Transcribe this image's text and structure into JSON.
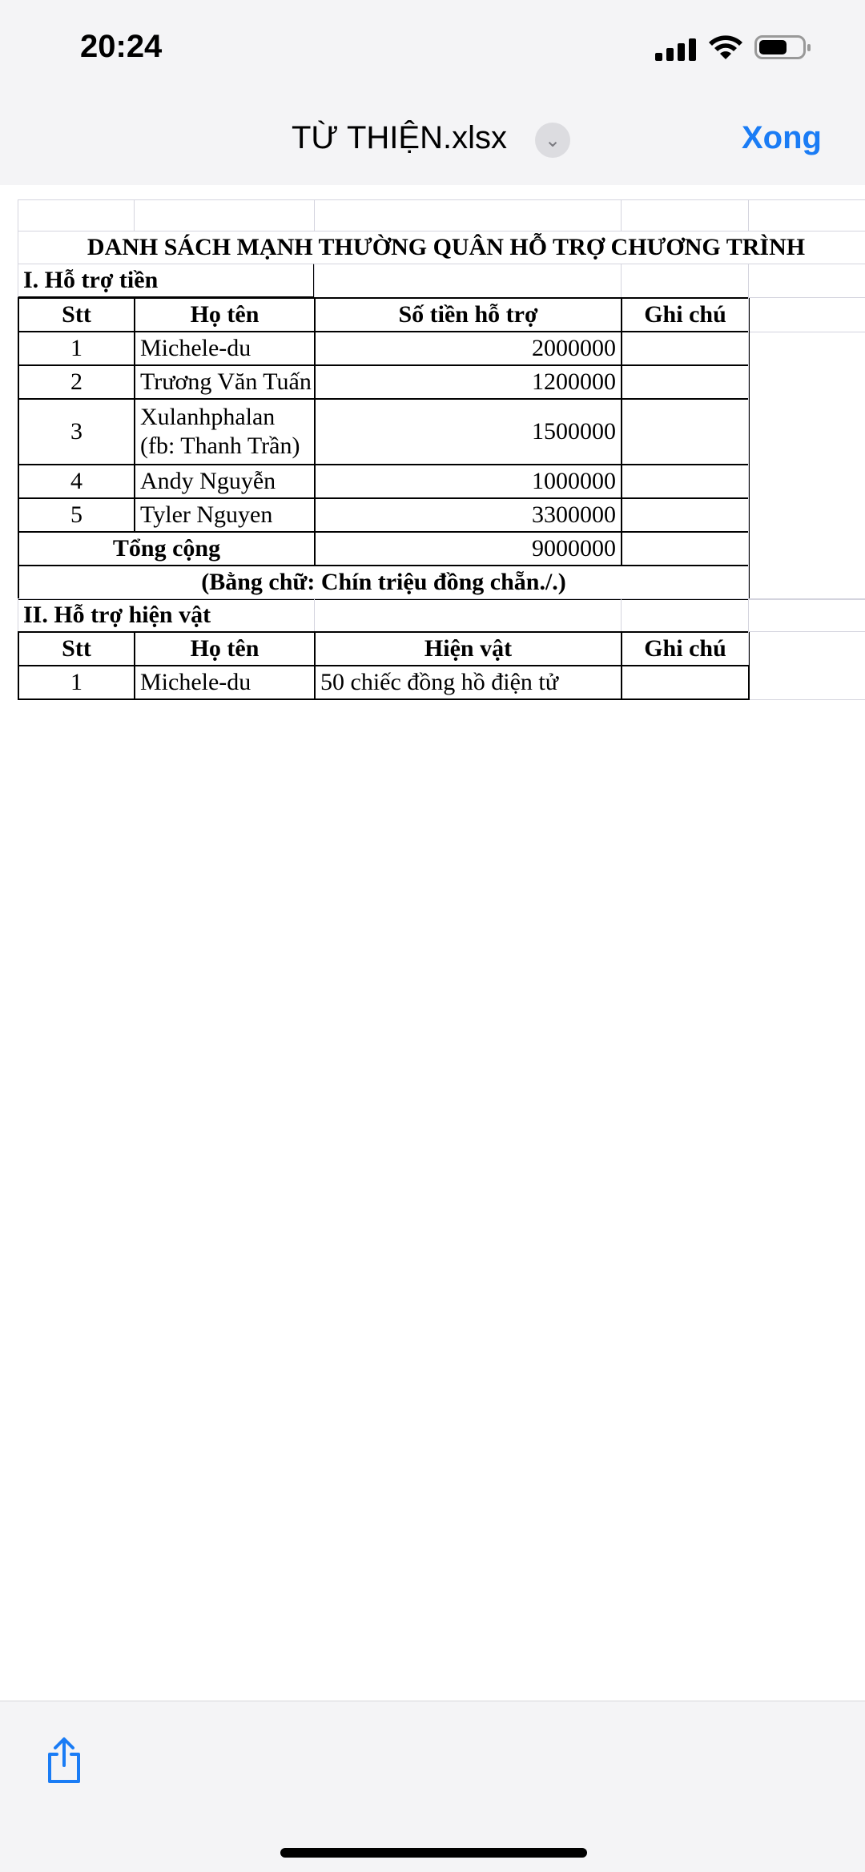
{
  "status_bar": {
    "time": "20:24"
  },
  "header": {
    "title": "TỪ THIỆN.xlsx",
    "done_label": "Xong"
  },
  "sheet": {
    "title": "DANH SÁCH MẠNH THƯỜNG QUÂN HỖ TRỢ CHƯƠNG TRÌNH",
    "section1": {
      "heading": "I. Hỗ trợ tiền",
      "columns": [
        "Stt",
        "Họ tên",
        "Số tiền hỗ trợ",
        "Ghi chú"
      ],
      "rows": [
        {
          "stt": "1",
          "name": "Michele-du",
          "amount": "2000000",
          "note": ""
        },
        {
          "stt": "2",
          "name": "Trương Văn Tuấn",
          "amount": "1200000",
          "note": ""
        },
        {
          "stt": "3",
          "name": "Xulanhphalan",
          "name2": "(fb: Thanh Trần)",
          "amount": "1500000",
          "note": ""
        },
        {
          "stt": "4",
          "name": "Andy Nguyễn",
          "amount": "1000000",
          "note": ""
        },
        {
          "stt": "5",
          "name": "Tyler Nguyen",
          "amount": "3300000",
          "note": ""
        }
      ],
      "total_label": "Tổng cộng",
      "total": "9000000",
      "in_words": "(Bằng chữ: Chín triệu đồng chẵn./.)"
    },
    "section2": {
      "heading": "II. Hỗ trợ hiện vật",
      "columns": [
        "Stt",
        "Họ tên",
        "Hiện vật",
        "Ghi chú"
      ],
      "rows": [
        {
          "stt": "1",
          "name": "Michele-du",
          "item": "50 chiếc đồng hồ điện tử",
          "note": ""
        }
      ]
    }
  },
  "toolbar": {
    "share_icon": "share-icon"
  },
  "colors": {
    "accent": "#1a7cf5",
    "grid": "#d4d4de"
  }
}
